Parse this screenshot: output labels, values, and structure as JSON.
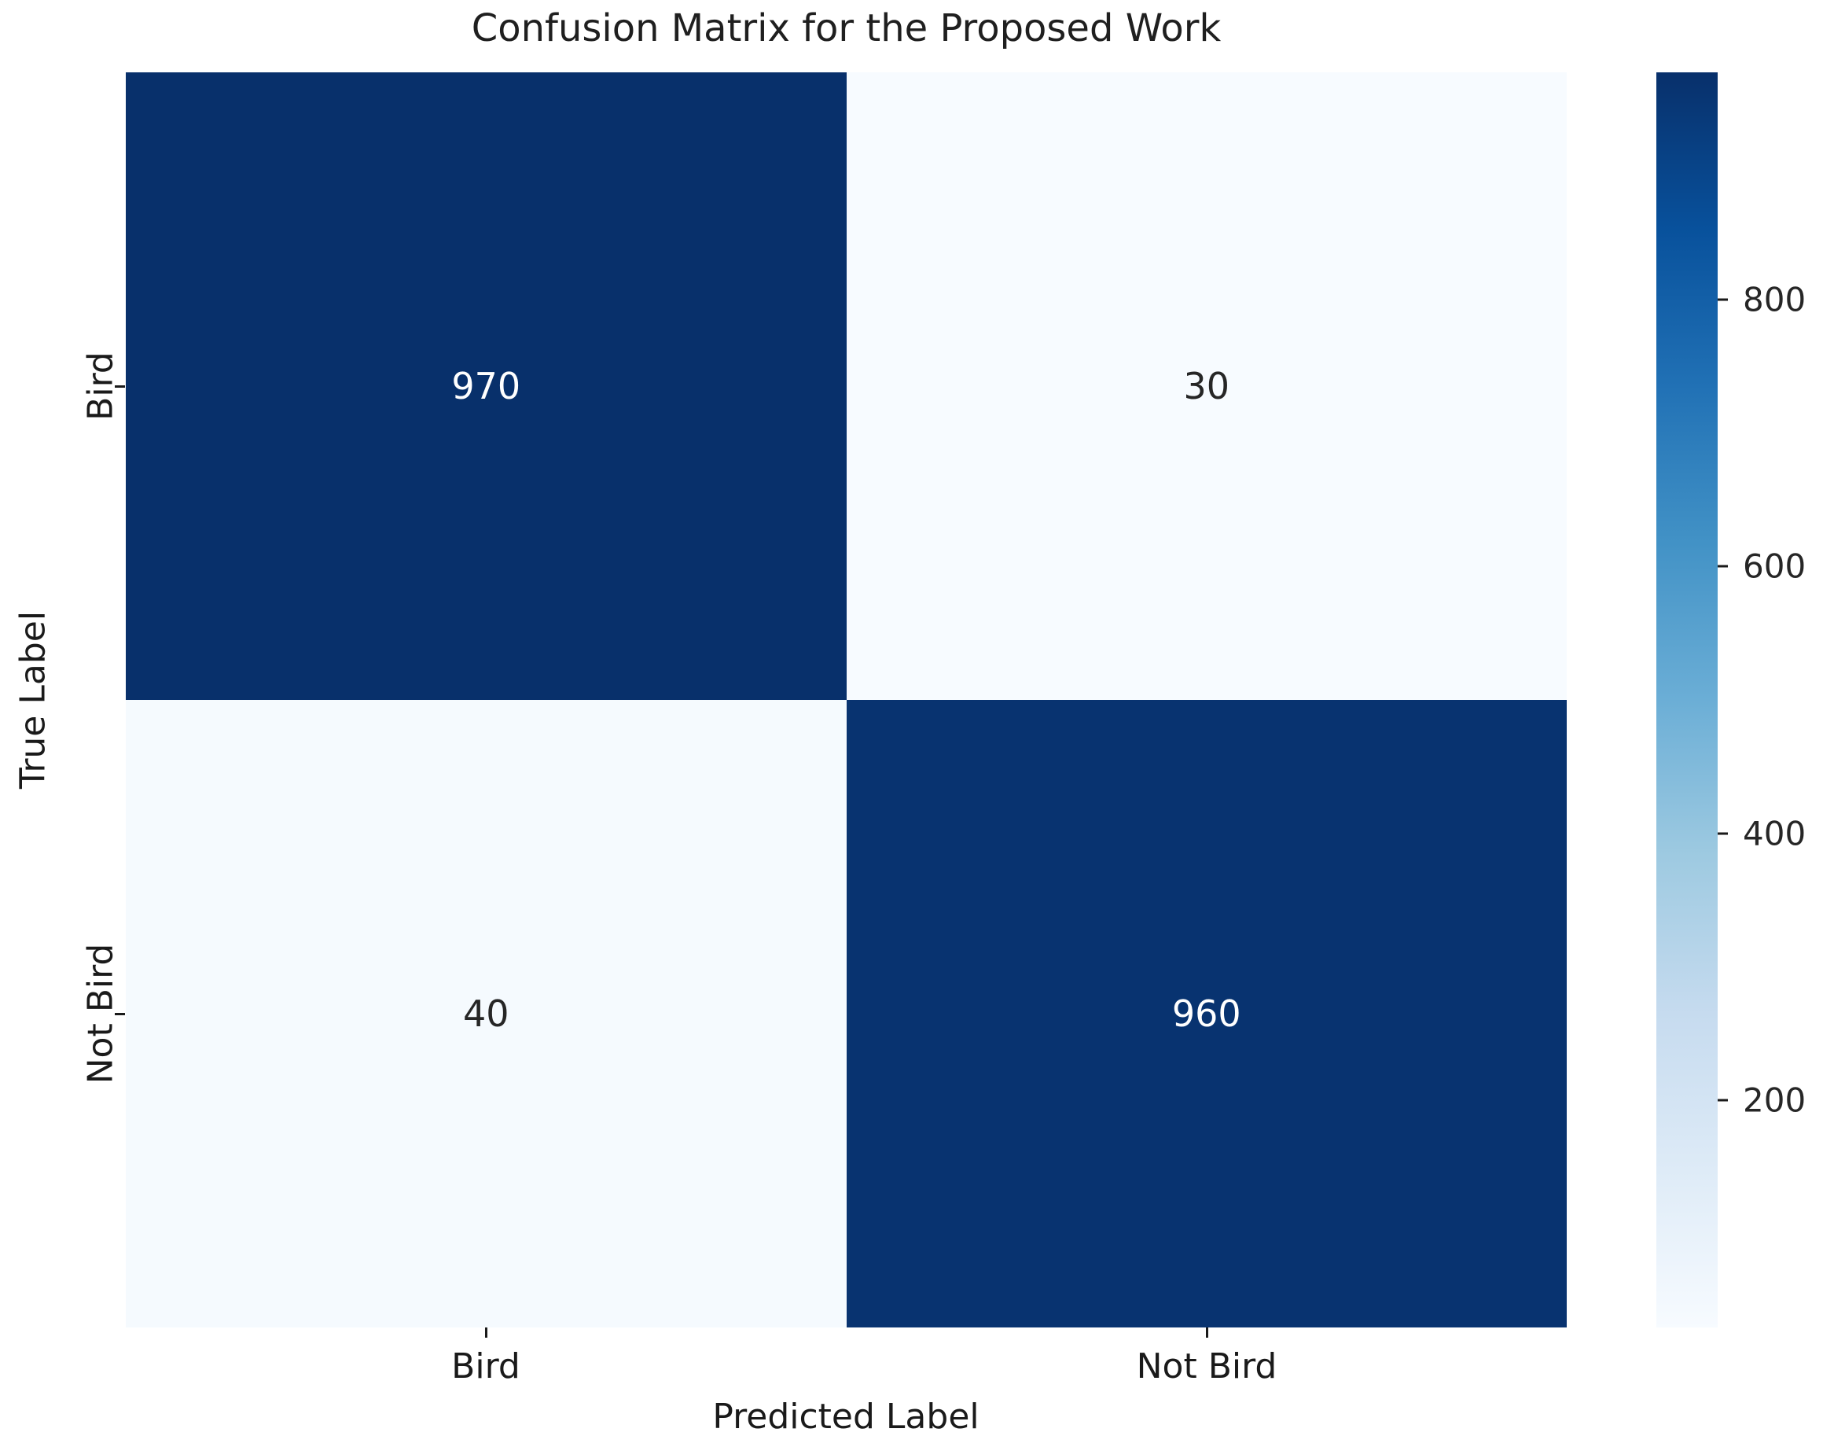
{
  "title": "Confusion Matrix for the Proposed Work",
  "axes": {
    "xlabel": "Predicted Label",
    "ylabel": "True Label",
    "x_ticks": [
      "Bird",
      "Not Bird"
    ],
    "y_ticks": [
      "Bird",
      "Not Bird"
    ]
  },
  "cells": [
    {
      "row": "Bird",
      "col": "Bird",
      "value": "970",
      "bg": "#08306b",
      "fg": "#ffffff"
    },
    {
      "row": "Bird",
      "col": "Not Bird",
      "value": "30",
      "bg": "#f7fbff",
      "fg": "#262626"
    },
    {
      "row": "Not Bird",
      "col": "Bird",
      "value": "40",
      "bg": "#f5fafe",
      "fg": "#262626"
    },
    {
      "row": "Not Bird",
      "col": "Not Bird",
      "value": "960",
      "bg": "#083370",
      "fg": "#ffffff"
    }
  ],
  "colorbar": {
    "colormap": "Blues",
    "vmin": 30,
    "vmax": 970,
    "ticks": [
      800,
      600,
      400,
      200
    ],
    "stops": [
      "#f7fbff",
      "#deebf7",
      "#c6dbef",
      "#9ecae1",
      "#6baed6",
      "#4292c6",
      "#2171b5",
      "#08519c",
      "#08306b"
    ]
  },
  "chart_data": {
    "type": "heatmap",
    "title": "Confusion Matrix for the Proposed Work",
    "xlabel": "Predicted Label",
    "ylabel": "True Label",
    "x_categories": [
      "Bird",
      "Not Bird"
    ],
    "y_categories": [
      "Bird",
      "Not Bird"
    ],
    "matrix": [
      [
        970,
        30
      ],
      [
        40,
        960
      ]
    ],
    "annotations": [
      [
        "970",
        "30"
      ],
      [
        "40",
        "960"
      ]
    ],
    "colormap": "Blues",
    "vmin": 30,
    "vmax": 970,
    "colorbar_ticks": [
      200,
      400,
      600,
      800
    ],
    "colorbar_position": "right",
    "grid": false
  }
}
